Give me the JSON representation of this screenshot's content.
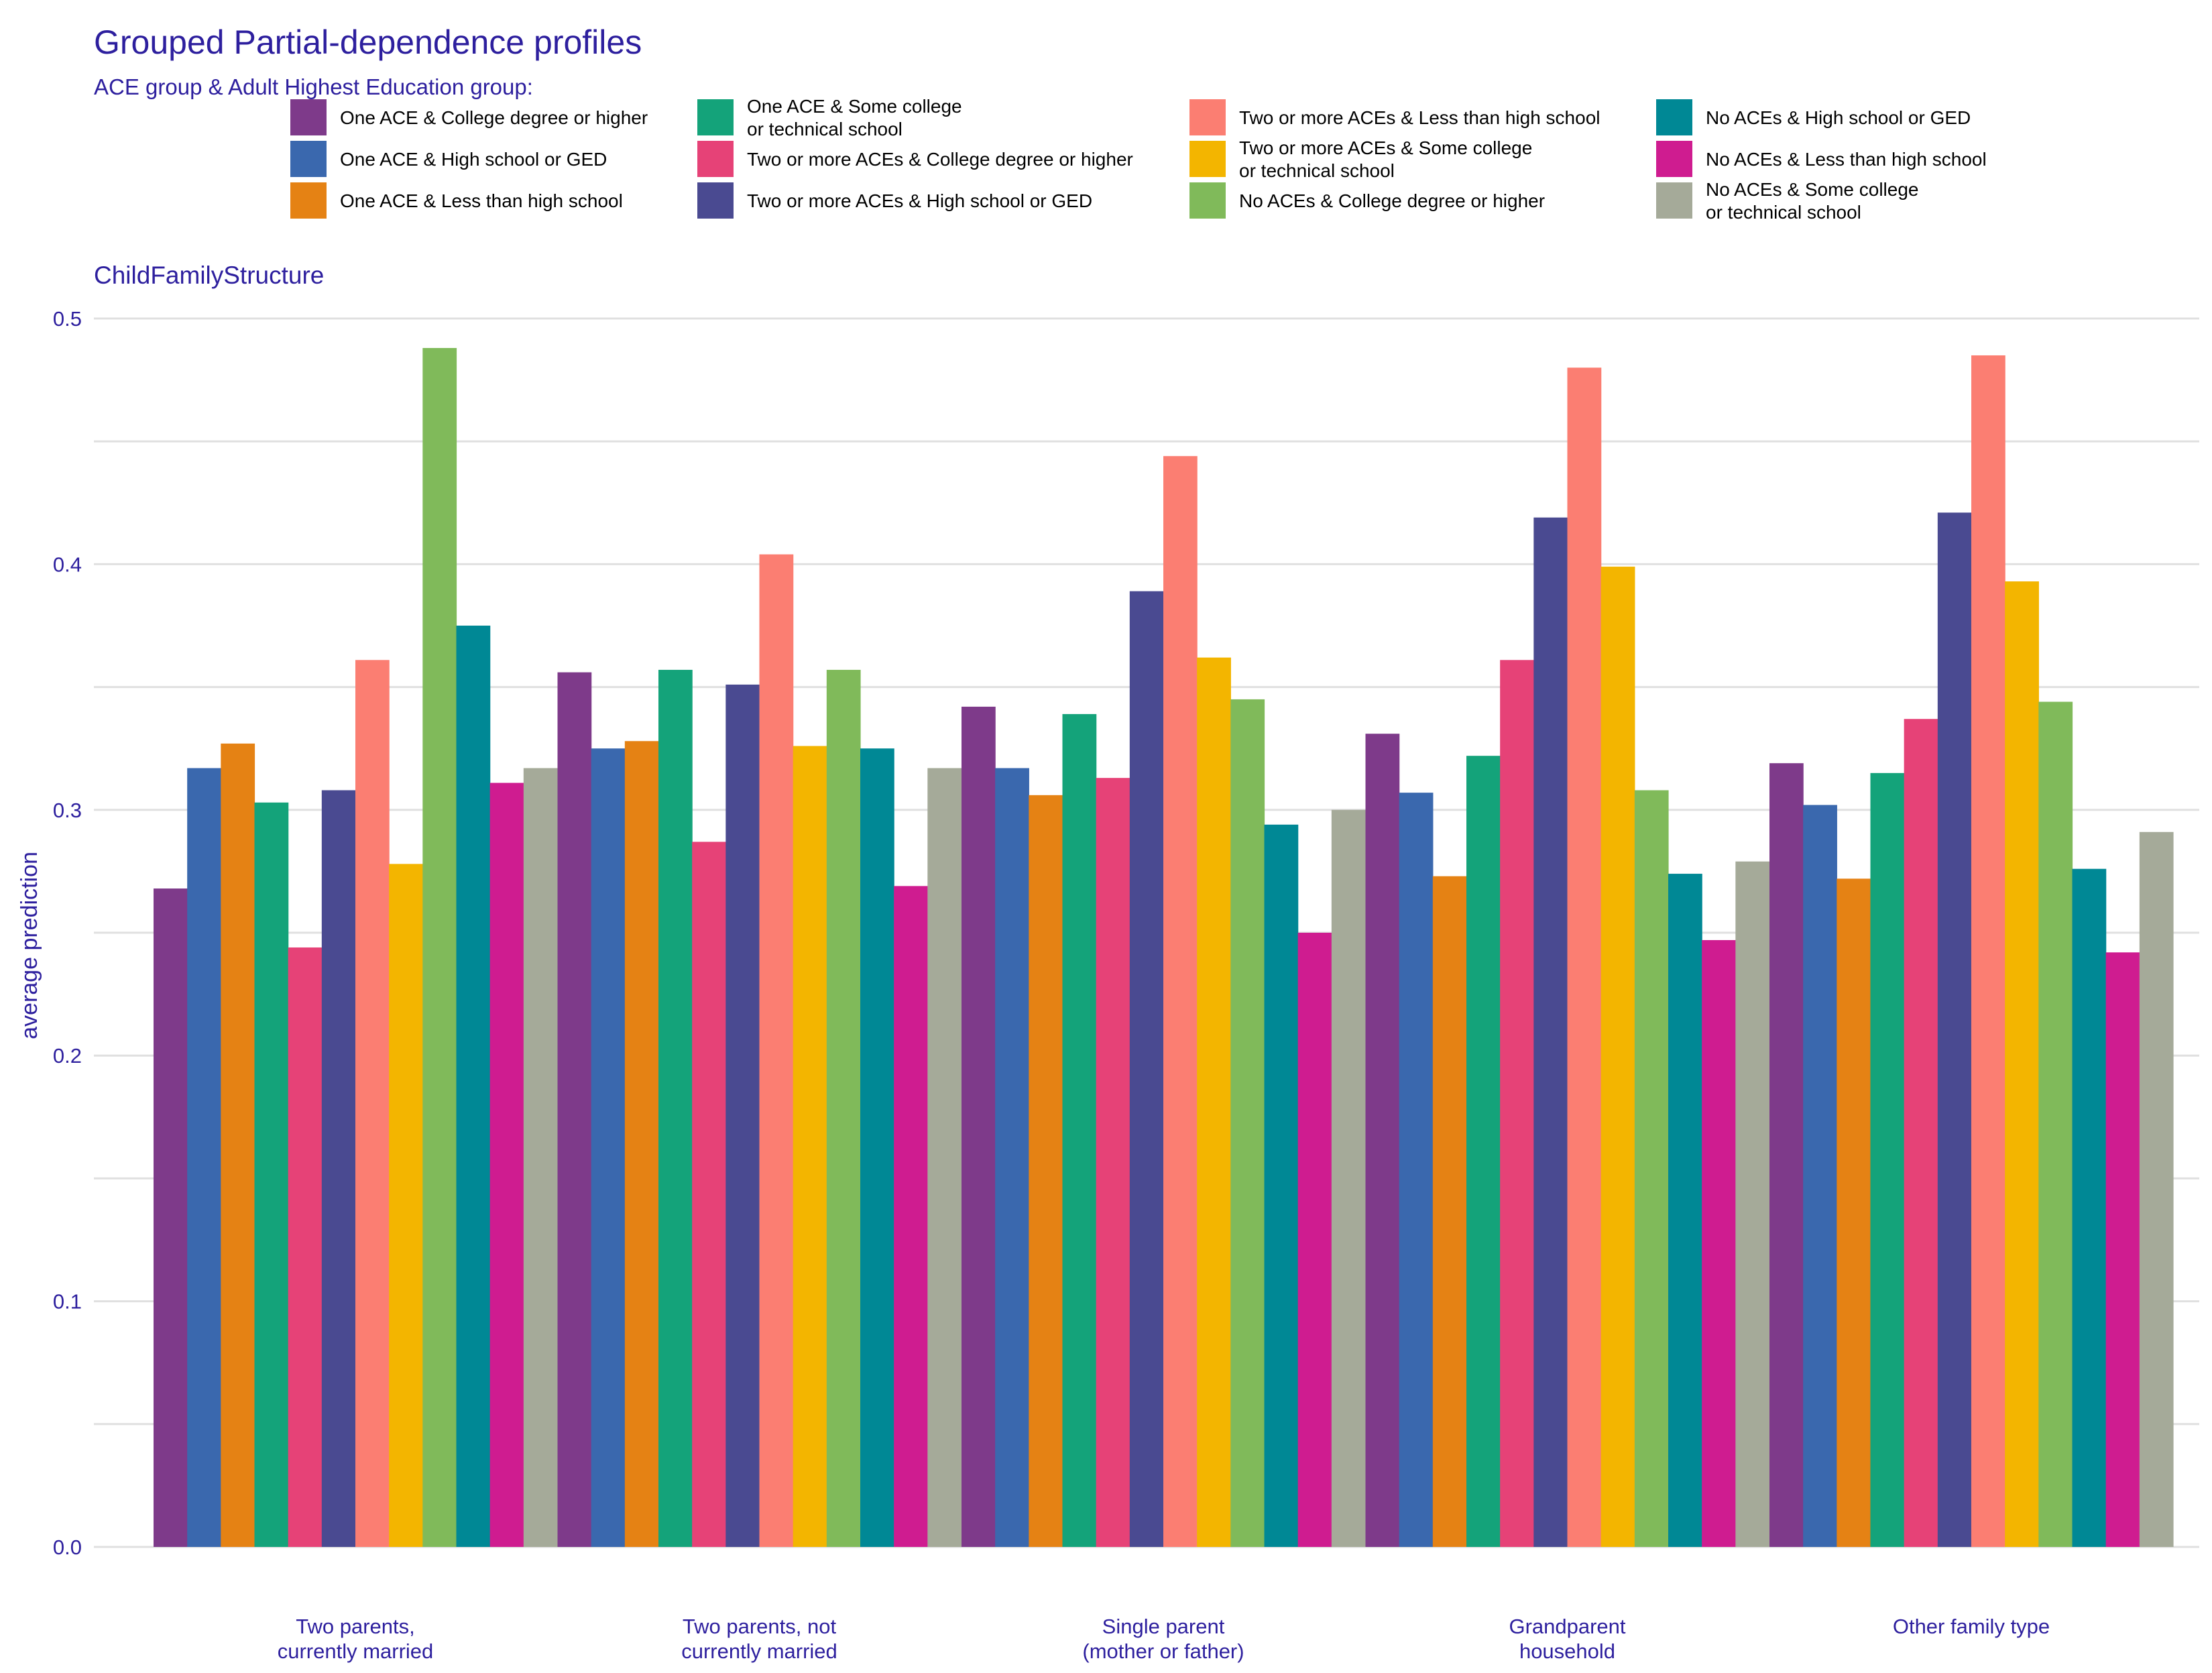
{
  "chart_data": {
    "type": "bar",
    "title": "Grouped Partial-dependence profiles",
    "subtitle": "ChildFamilyStructure",
    "legend_title": "ACE group & Adult Highest Education group:",
    "legend_position": "top",
    "xlabel": "",
    "ylabel": "average prediction",
    "ylim": [
      0,
      0.5
    ],
    "yticks": [
      "0.0",
      "0.1",
      "0.2",
      "0.3",
      "0.4",
      "0.5"
    ],
    "grid": true,
    "categories": [
      [
        "Two parents,",
        "currently married"
      ],
      [
        "Two parents, not",
        "currently married"
      ],
      [
        "Single parent",
        "(mother or father)"
      ],
      [
        "Grandparent",
        "household"
      ],
      [
        "Other family type"
      ]
    ],
    "series": [
      {
        "name": [
          "One ACE & College degree or higher"
        ],
        "color": "#7e3a8a",
        "values": [
          0.268,
          0.356,
          0.342,
          0.331,
          0.319
        ]
      },
      {
        "name": [
          "One ACE & High school or GED"
        ],
        "color": "#3a68ae",
        "values": [
          0.317,
          0.325,
          0.317,
          0.307,
          0.302
        ]
      },
      {
        "name": [
          "One ACE & Less than high school"
        ],
        "color": "#e58214",
        "values": [
          0.327,
          0.328,
          0.306,
          0.273,
          0.272
        ]
      },
      {
        "name": [
          "One ACE & Some college",
          "or technical school"
        ],
        "color": "#14a37a",
        "values": [
          0.303,
          0.357,
          0.339,
          0.322,
          0.315
        ]
      },
      {
        "name": [
          "Two or more ACEs & College degree or higher"
        ],
        "color": "#e64277",
        "values": [
          0.244,
          0.287,
          0.313,
          0.361,
          0.337
        ]
      },
      {
        "name": [
          "Two or more ACEs & High school or GED"
        ],
        "color": "#4a4a91",
        "values": [
          0.308,
          0.351,
          0.389,
          0.419,
          0.421
        ]
      },
      {
        "name": [
          "Two or more ACEs & Less than high school"
        ],
        "color": "#fb7e72",
        "values": [
          0.361,
          0.404,
          0.444,
          0.48,
          0.485
        ]
      },
      {
        "name": [
          "Two or more ACEs & Some college",
          "or technical school"
        ],
        "color": "#f3b500",
        "values": [
          0.278,
          0.326,
          0.362,
          0.399,
          0.393
        ]
      },
      {
        "name": [
          "No ACEs & College degree or higher"
        ],
        "color": "#80ba5a",
        "values": [
          0.488,
          0.357,
          0.345,
          0.308,
          0.344
        ]
      },
      {
        "name": [
          "No ACEs & High school or GED"
        ],
        "color": "#008895",
        "values": [
          0.375,
          0.325,
          0.294,
          0.274,
          0.276
        ]
      },
      {
        "name": [
          "No ACEs & Less than high school"
        ],
        "color": "#cf1c90",
        "values": [
          0.311,
          0.269,
          0.25,
          0.247,
          0.242
        ]
      },
      {
        "name": [
          "No ACEs & Some college",
          "or technical school"
        ],
        "color": "#a5aa99",
        "values": [
          0.317,
          0.317,
          0.3,
          0.279,
          0.291
        ]
      }
    ]
  }
}
